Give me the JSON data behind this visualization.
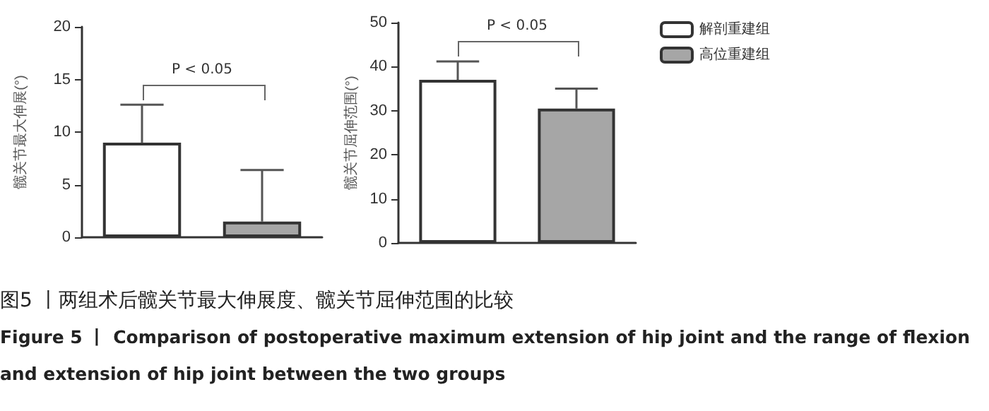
{
  "chart_data": [
    {
      "type": "bar",
      "categories": [
        null,
        null
      ],
      "ylabel": "髋关节最大伸展(°)",
      "ylim": [
        0,
        20
      ],
      "yticks": [
        0,
        5,
        10,
        15,
        20
      ],
      "grid": false,
      "legend": false,
      "series": [
        {
          "color": "#ffffff",
          "values": [
            9,
            null
          ],
          "errors": [
            [
              9,
              12.6
            ],
            null
          ]
        },
        {
          "color": "#a6a6a6",
          "values": [
            null,
            1.5
          ],
          "errors": [
            null,
            [
              1.5,
              6.4
            ]
          ]
        }
      ],
      "annotations": [
        "P < 0.05",
        "图5 丨两组术后髋关节最大伸展度、髋关节屈伸范围的比较",
        "Figure 5 丨 Comparison of postoperative maximum extension of hip joint and the range of flexion and extension of hip joint between the two groups"
      ]
    },
    {
      "type": "bar",
      "categories": [
        null,
        null
      ],
      "ylabel": "髋关节屈伸范围(°)",
      "ylim": [
        0,
        50
      ],
      "yticks": [
        0,
        10,
        20,
        30,
        40,
        50
      ],
      "grid": false,
      "legend": "right",
      "series": [
        {
          "name": "解剖重建组",
          "color": "#ffffff",
          "values": [
            37,
            null
          ],
          "errors": [
            [
              37,
              41.2
            ],
            null
          ]
        },
        {
          "name": "高位重建组",
          "color": "#a6a6a6",
          "values": [
            null,
            30.5
          ],
          "errors": [
            null,
            [
              30.5,
              35
            ]
          ]
        }
      ],
      "annotations": [
        "P < 0.05"
      ]
    }
  ]
}
